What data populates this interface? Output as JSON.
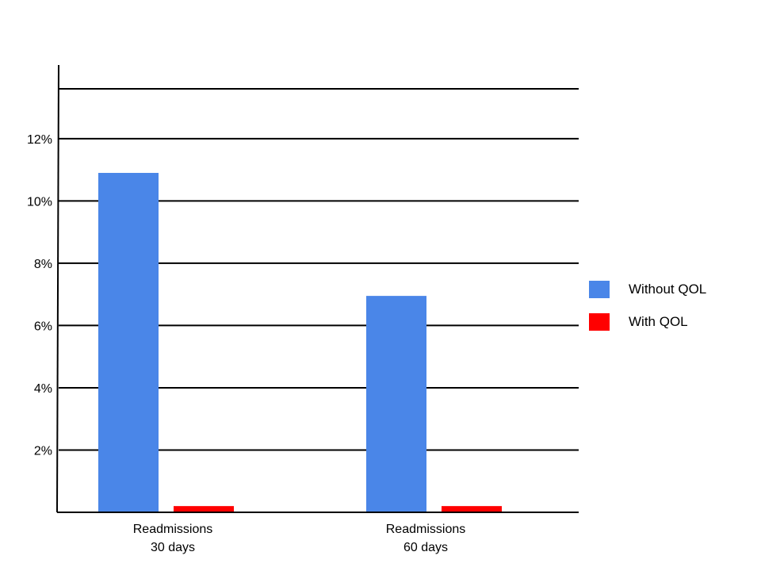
{
  "chart_data": {
    "type": "bar",
    "categories": [
      [
        "Readmissions",
        "30 days"
      ],
      [
        "Readmissions",
        "60 days"
      ]
    ],
    "series": [
      {
        "name": "Without QOL",
        "color": "#4a86e8",
        "values": [
          10.9,
          6.95
        ]
      },
      {
        "name": "With QOL",
        "color": "#ff0000",
        "values": [
          0.2,
          0.2
        ]
      }
    ],
    "y_tick_labels": [
      "2%",
      "4%",
      "6%",
      "8%",
      "10%",
      "12%"
    ],
    "y_tick_values": [
      2,
      4,
      6,
      8,
      10,
      12
    ],
    "ylim": [
      0,
      13.6
    ],
    "grid": true,
    "legend_position": "right",
    "title": "",
    "xlabel": "",
    "ylabel": ""
  }
}
